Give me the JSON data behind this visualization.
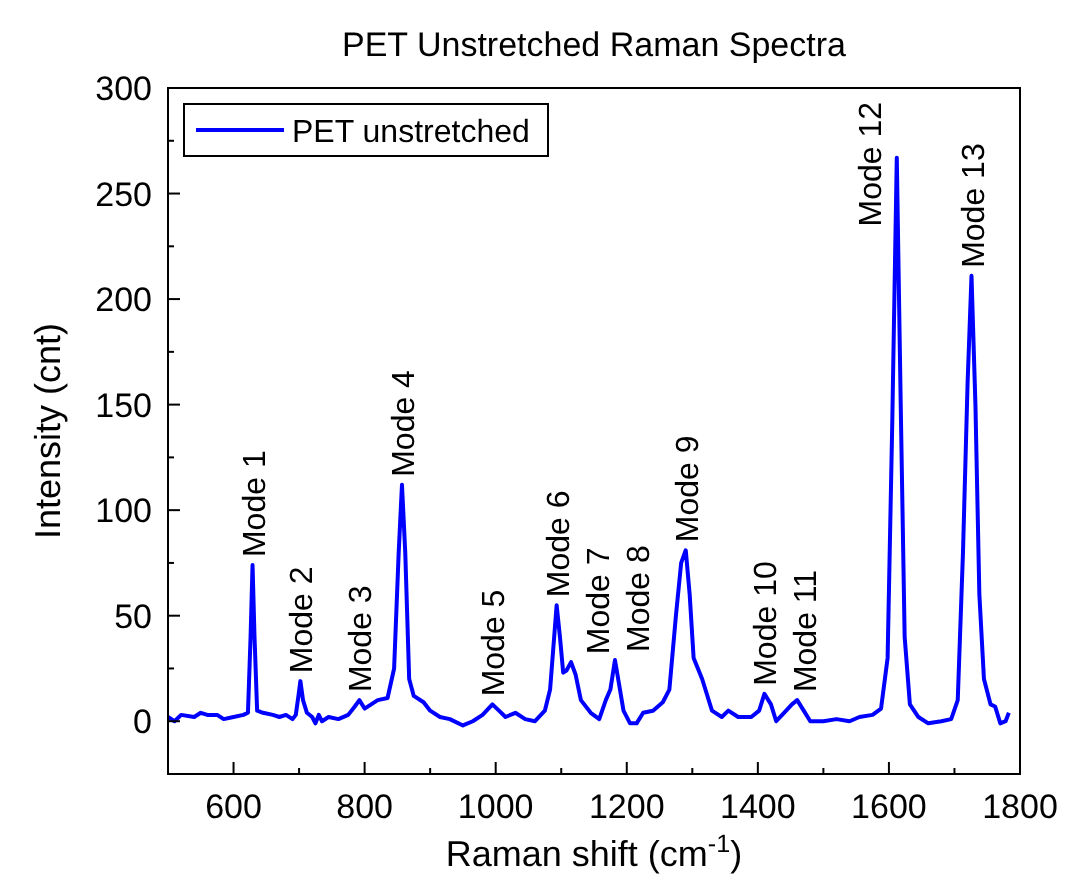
{
  "chart_data": {
    "type": "line",
    "title": "PET Unstretched Raman Spectra",
    "xlabel": "Raman shift (cm$^{-1}$)",
    "ylabel": "Intensity (cnt)",
    "xlim": [
      500,
      1800
    ],
    "ylim": [
      -25,
      300
    ],
    "xticks": [
      {
        "value": 500,
        "label": null
      },
      600,
      {
        "value": 700,
        "label": null
      },
      800,
      {
        "value": 900,
        "label": null
      },
      1000,
      {
        "value": 1100,
        "label": null
      },
      1200,
      {
        "value": 1300,
        "label": null
      },
      1400,
      {
        "value": 1500,
        "label": null
      },
      1600,
      {
        "value": 1700,
        "label": null
      },
      1800
    ],
    "yticks": [
      {
        "value": -25,
        "label": null
      },
      0,
      {
        "value": 25,
        "label": null
      },
      50,
      {
        "value": 75,
        "label": null
      },
      100,
      {
        "value": 125,
        "label": null
      },
      150,
      {
        "value": 175,
        "label": null
      },
      200,
      {
        "value": 225,
        "label": null
      },
      250,
      {
        "value": 275,
        "label": null
      },
      300
    ],
    "legend": "top left",
    "grid": false,
    "marker": "none",
    "line_style": "solid",
    "series": [
      {
        "name": "PET unstretched",
        "color": "#0000ff",
        "x": [
          500,
          510,
          520,
          540,
          550,
          560,
          575,
          585,
          600,
          615,
          622,
          626,
          629,
          632,
          636,
          645,
          660,
          670,
          680,
          690,
          695,
          699,
          702,
          706,
          712,
          720,
          725,
          730,
          735,
          745,
          760,
          775,
          785,
          792,
          800,
          810,
          820,
          835,
          845,
          852,
          857,
          862,
          868,
          875,
          890,
          900,
          915,
          930,
          950,
          965,
          980,
          995,
          1005,
          1015,
          1030,
          1045,
          1060,
          1075,
          1083,
          1088,
          1093,
          1098,
          1103,
          1108,
          1115,
          1122,
          1130,
          1145,
          1158,
          1168,
          1175,
          1182,
          1188,
          1195,
          1205,
          1215,
          1225,
          1240,
          1255,
          1265,
          1275,
          1283,
          1290,
          1296,
          1302,
          1315,
          1330,
          1345,
          1355,
          1370,
          1390,
          1402,
          1410,
          1420,
          1428,
          1440,
          1452,
          1460,
          1470,
          1480,
          1500,
          1520,
          1540,
          1555,
          1575,
          1588,
          1598,
          1605,
          1612,
          1618,
          1624,
          1632,
          1645,
          1660,
          1680,
          1695,
          1705,
          1713,
          1720,
          1726,
          1732,
          1738,
          1745,
          1755,
          1762,
          1770,
          1778,
          1783
        ],
        "values": [
          2,
          0,
          3,
          2,
          4,
          3,
          3,
          1,
          2,
          3,
          4,
          40,
          74,
          40,
          5,
          4,
          3,
          2,
          3,
          1,
          3,
          12,
          19,
          10,
          4,
          2,
          -1,
          3,
          0,
          2,
          1,
          3,
          7,
          10,
          6,
          8,
          10,
          11,
          25,
          80,
          112,
          80,
          20,
          12,
          9,
          5,
          2,
          1,
          -2,
          0,
          3,
          8,
          5,
          2,
          4,
          1,
          0,
          5,
          15,
          35,
          55,
          40,
          23,
          24,
          28,
          22,
          10,
          4,
          1,
          10,
          15,
          29,
          18,
          5,
          -1,
          -1,
          4,
          5,
          9,
          15,
          50,
          75,
          81,
          60,
          30,
          20,
          5,
          2,
          5,
          2,
          2,
          5,
          13,
          8,
          0,
          4,
          8,
          10,
          5,
          0,
          0,
          1,
          0,
          2,
          3,
          6,
          30,
          140,
          267,
          150,
          40,
          8,
          2,
          -1,
          0,
          1,
          10,
          80,
          160,
          211,
          150,
          60,
          20,
          8,
          7,
          -1,
          0,
          4
        ]
      }
    ],
    "annotations": [
      {
        "text": "Mode 1",
        "x": 629,
        "y": 74
      },
      {
        "text": "Mode 2",
        "x": 702,
        "y": 19
      },
      {
        "text": "Mode 3",
        "x": 792,
        "y": 10
      },
      {
        "text": "Mode 4",
        "x": 857,
        "y": 112
      },
      {
        "text": "Mode 5",
        "x": 995,
        "y": 8
      },
      {
        "text": "Mode 6",
        "x": 1093,
        "y": 55
      },
      {
        "text": "Mode 7",
        "x": 1115,
        "y": 28
      },
      {
        "text": "Mode 8",
        "x": 1182,
        "y": 29
      },
      {
        "text": "Mode 9",
        "x": 1290,
        "y": 81
      },
      {
        "text": "Mode 10",
        "x": 1410,
        "y": 13
      },
      {
        "text": "Mode 11",
        "x": 1460,
        "y": 10
      },
      {
        "text": "Mode 12",
        "x": 1612,
        "y": 267
      },
      {
        "text": "Mode 13",
        "x": 1726,
        "y": 211
      }
    ]
  }
}
